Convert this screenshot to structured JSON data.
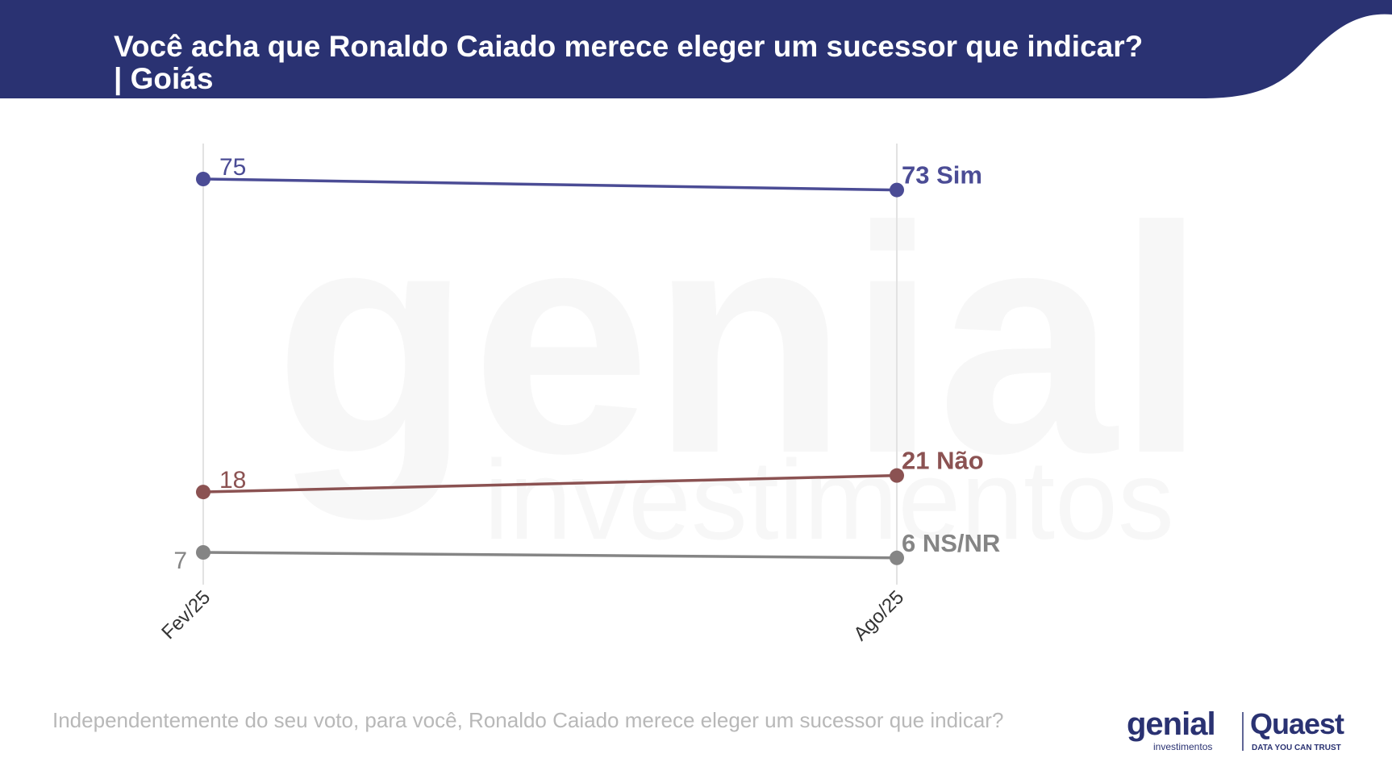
{
  "header": {
    "title": "Você acha que Ronaldo Caiado merece eleger um sucessor que indicar? | Goiás"
  },
  "footnote": "Independentemente do seu voto, para você, Ronaldo Caiado merece eleger um sucessor que indicar?",
  "watermark": {
    "word": "genial",
    "sub": "investimentos"
  },
  "logos": {
    "genial": "genial",
    "genial_sub": "investimentos",
    "quaest": "Quaest",
    "quaest_tagline": "DATA YOU CAN TRUST"
  },
  "colors": {
    "header_bg": "#2a3272",
    "sim": "#4b4c95",
    "nao": "#8b5252",
    "nsnr": "#858585",
    "axis": "#e2e2e2"
  },
  "chart_data": {
    "type": "line",
    "categories": [
      "Fev/25",
      "Ago/25"
    ],
    "ylim": [
      0,
      80
    ],
    "series": [
      {
        "name": "Sim",
        "values": [
          75,
          73
        ],
        "color": "#4b4c95"
      },
      {
        "name": "Não",
        "values": [
          18,
          21
        ],
        "color": "#8b5252"
      },
      {
        "name": "NS/NR",
        "values": [
          7,
          6
        ],
        "color": "#858585"
      }
    ]
  }
}
